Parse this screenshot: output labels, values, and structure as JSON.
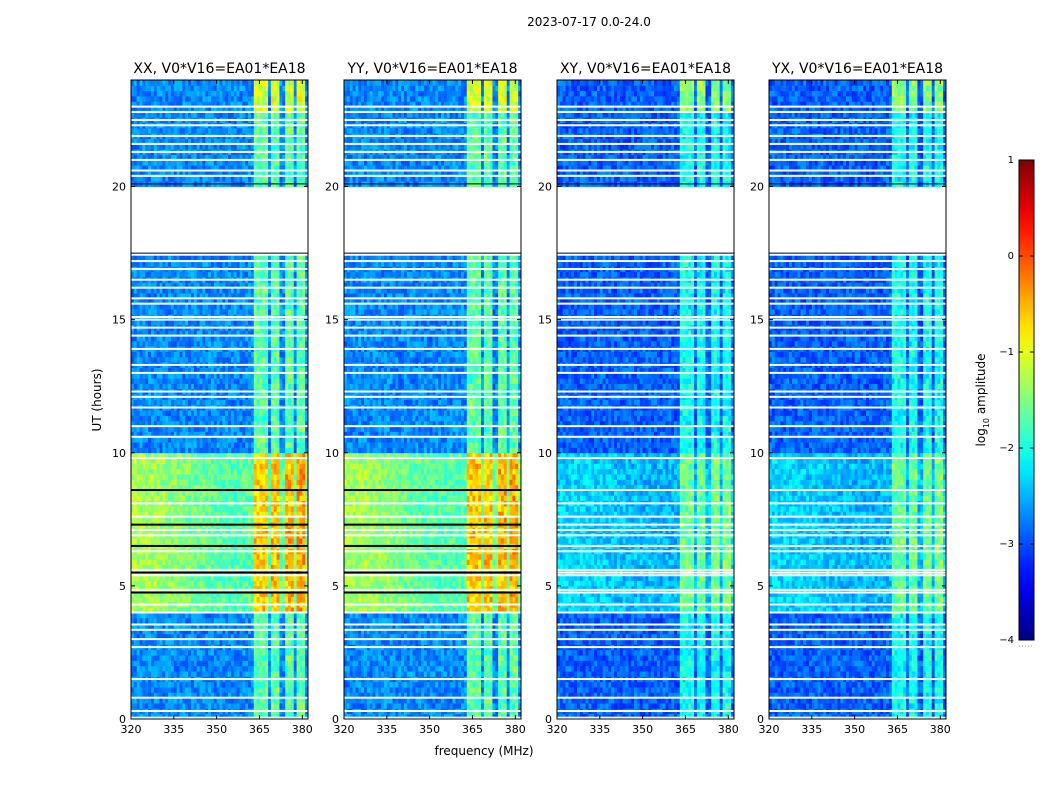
{
  "chart_data": {
    "type": "heatmap",
    "suptitle": "2023-07-17 0.0-24.0",
    "xlabel": "frequency (MHz)",
    "ylabel": "UT (hours)",
    "xlim": [
      320,
      382
    ],
    "ylim": [
      0,
      24
    ],
    "xticks": [
      320,
      335,
      350,
      365,
      380
    ],
    "yticks": [
      0,
      5,
      10,
      15,
      20
    ],
    "panels": [
      {
        "title": "XX, V0*V16=EA01*EA18",
        "pol": "XX",
        "base": -2.7,
        "day_boost": 1.4,
        "rfi_boost": 1.2
      },
      {
        "title": "YY, V0*V16=EA01*EA18",
        "pol": "YY",
        "base": -2.7,
        "day_boost": 1.4,
        "rfi_boost": 1.2
      },
      {
        "title": "XY, V0*V16=EA01*EA18",
        "pol": "XY",
        "base": -2.9,
        "day_boost": 0.6,
        "rfi_boost": 1.0
      },
      {
        "title": "YX, V0*V16=EA01*EA18",
        "pol": "YX",
        "base": -2.9,
        "day_boost": 0.6,
        "rfi_boost": 1.0
      }
    ],
    "rfi_bands_mhz": [
      [
        363.5,
        368.0
      ],
      [
        369.0,
        372.5
      ],
      [
        374.0,
        377.5
      ],
      [
        378.5,
        381.0
      ]
    ],
    "data_gap_hours": [
      [
        17.5,
        20.1
      ]
    ],
    "flagged_time_hours": [
      0.05,
      0.3,
      0.8,
      1.5,
      2.7,
      3.0,
      3.35,
      3.55,
      4.0,
      4.3,
      4.75,
      4.85,
      5.4,
      5.5,
      5.6,
      6.3,
      6.5,
      6.9,
      7.1,
      7.3,
      7.6,
      8.1,
      8.6,
      9.8,
      10.6,
      11.0,
      11.7,
      12.1,
      12.3,
      13.0,
      13.3,
      13.9,
      14.4,
      14.7,
      15.0,
      15.1,
      15.6,
      15.8,
      16.2,
      16.5,
      16.9,
      17.2,
      20.4,
      20.6,
      21.0,
      21.3,
      21.6,
      21.9,
      22.3,
      22.5,
      22.8,
      23.0
    ],
    "daytime_hours": [
      [
        4.1,
        10.0
      ]
    ],
    "colorbar": {
      "label": "log10 amplitude",
      "label_main": "log",
      "label_sub": "10",
      "label_rest": " amplitude",
      "ticks": [
        1,
        0,
        -1,
        -2,
        -3,
        -4
      ],
      "tick_labels": [
        "1",
        "0",
        "−1",
        "−2",
        "−3",
        "−4"
      ],
      "vmin": -4,
      "vmax": 1,
      "colormap": "jet"
    }
  }
}
